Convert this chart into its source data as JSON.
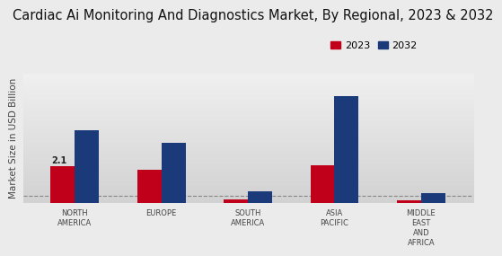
{
  "title": "Cardiac Ai Monitoring And Diagnostics Market, By Regional, 2023 & 2032",
  "ylabel": "Market Size in USD Billion",
  "categories": [
    "NORTH\nAMERICA",
    "EUROPE",
    "SOUTH\nAMERICA",
    "ASIA\nPACIFIC",
    "MIDDLE\nEAST\nAND\nAFRICA"
  ],
  "values_2023": [
    2.1,
    1.9,
    0.18,
    2.2,
    0.12
  ],
  "values_2032": [
    4.2,
    3.5,
    0.65,
    6.2,
    0.55
  ],
  "color_2023": "#c0001a",
  "color_2032": "#1a3a7a",
  "bar_width": 0.28,
  "annotation_label": "2.1",
  "background_color_top": "#f0f0f0",
  "background_color_bottom": "#d8d8d8",
  "dashed_line_y": 0.38,
  "title_fontsize": 10.5,
  "label_fontsize": 6,
  "legend_fontsize": 8,
  "ylabel_fontsize": 7.5,
  "ylim_max": 7.5,
  "legend_labels": [
    "2023",
    "2032"
  ]
}
